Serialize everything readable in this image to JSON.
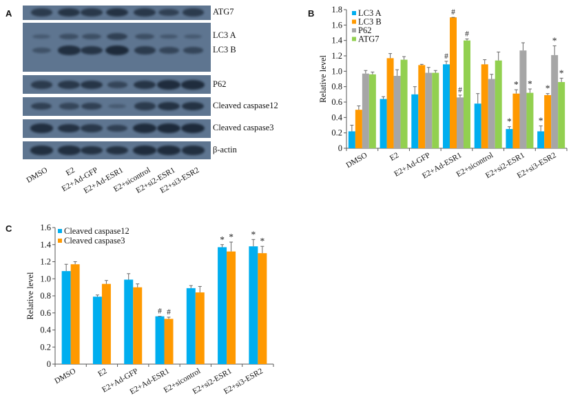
{
  "panels": {
    "A": {
      "letter": "A",
      "lanes": [
        "DMSO",
        "E2",
        "E2+Ad-GFP",
        "E2+Ad-ESR1",
        "E2+sicontrol",
        "E2+si2-ESR1",
        "E2+si3-ESR2"
      ],
      "blots": [
        {
          "label": "ATG7",
          "intensity": [
            0.7,
            0.8,
            0.75,
            0.85,
            0.75,
            0.6,
            0.7
          ]
        },
        {
          "label": "LC3 A",
          "intensity": [
            0.15,
            0.35,
            0.35,
            0.6,
            0.35,
            0.2,
            0.15
          ]
        },
        {
          "label": "LC3 B",
          "intensity": [
            0.3,
            0.9,
            0.8,
            1.0,
            0.7,
            0.5,
            0.5
          ]
        },
        {
          "label": "P62",
          "intensity": [
            0.7,
            0.75,
            0.8,
            0.5,
            0.8,
            0.95,
            0.95
          ]
        },
        {
          "label": "Cleaved caspase12",
          "intensity": [
            0.6,
            0.5,
            0.6,
            0.15,
            0.7,
            0.85,
            0.85
          ]
        },
        {
          "label": "Cleaved caspase3",
          "intensity": [
            0.9,
            0.85,
            0.75,
            0.6,
            0.95,
            1.0,
            1.0
          ]
        },
        {
          "label": "β-actin",
          "intensity": [
            0.9,
            0.9,
            0.85,
            0.85,
            0.95,
            0.95,
            0.9
          ]
        }
      ]
    },
    "B": {
      "letter": "B"
    },
    "C": {
      "letter": "C"
    }
  },
  "chart_data": [
    {
      "id": "B",
      "type": "bar",
      "title": "",
      "xlabel": "",
      "ylabel": "Relative level",
      "ylim": [
        0,
        1.8
      ],
      "yticks": [
        "0",
        "0.2",
        "0.4",
        "0.6",
        "0.8",
        "1.0",
        "1.2",
        "1.4",
        "1.6",
        "1.8"
      ],
      "grid": false,
      "legend_position": "top-left",
      "categories": [
        "DMSO",
        "E2",
        "E2+Ad-GFP",
        "E2+Ad-ESR1",
        "E2+sicontrol",
        "E2+si2-ESR1",
        "E2+si3-ESR2"
      ],
      "series": [
        {
          "name": "LC3 A",
          "color": "#00aeef",
          "values": [
            0.22,
            0.64,
            0.7,
            1.09,
            0.58,
            0.25,
            0.22
          ],
          "errors": [
            0.08,
            0.03,
            0.1,
            0.04,
            0.13,
            0.03,
            0.07
          ],
          "marks": [
            "",
            "",
            "",
            "#",
            "",
            "*",
            "*"
          ]
        },
        {
          "name": "LC3 B",
          "color": "#ff9900",
          "values": [
            0.5,
            1.17,
            1.08,
            1.7,
            1.09,
            0.71,
            0.69
          ],
          "errors": [
            0.05,
            0.06,
            0.01,
            0.0,
            0.06,
            0.05,
            0.02
          ],
          "marks": [
            "",
            "",
            "",
            "#",
            "",
            "*",
            "*"
          ]
        },
        {
          "name": "P62",
          "color": "#a6a6a6",
          "values": [
            0.97,
            0.94,
            0.98,
            0.66,
            0.9,
            1.27,
            1.21
          ],
          "errors": [
            0.04,
            0.08,
            0.07,
            0.03,
            0.06,
            0.1,
            0.12
          ],
          "marks": [
            "",
            "",
            "",
            "#",
            "",
            "",
            "*"
          ]
        },
        {
          "name": "ATG7",
          "color": "#92d050",
          "values": [
            0.96,
            1.15,
            0.98,
            1.4,
            1.14,
            0.72,
            0.86
          ],
          "errors": [
            0.03,
            0.04,
            0.03,
            0.02,
            0.11,
            0.05,
            0.05
          ],
          "marks": [
            "",
            "",
            "",
            "#",
            "",
            "*",
            "*"
          ]
        }
      ]
    },
    {
      "id": "C",
      "type": "bar",
      "title": "",
      "xlabel": "",
      "ylabel": "Relative level",
      "ylim": [
        0,
        1.6
      ],
      "yticks": [
        "0",
        "0.2",
        "0.4",
        "0.6",
        "0.8",
        "1.0",
        "1.2",
        "1.4",
        "1.6"
      ],
      "grid": false,
      "legend_position": "top-left",
      "categories": [
        "DMSO",
        "E2",
        "E2+Ad-GFP",
        "E2+Ad-ESR1",
        "E2+sicontrol",
        "E2+si2-ESR1",
        "E2+si3-ESR2"
      ],
      "series": [
        {
          "name": "Cleaved caspase12",
          "color": "#00aeef",
          "values": [
            1.09,
            0.79,
            0.99,
            0.56,
            0.89,
            1.37,
            1.38
          ],
          "errors": [
            0.08,
            0.02,
            0.07,
            0.0,
            0.03,
            0.03,
            0.08
          ],
          "marks": [
            "",
            "",
            "",
            "#",
            "",
            "*",
            "*"
          ]
        },
        {
          "name": "Cleaved caspase3",
          "color": "#ff9900",
          "values": [
            1.17,
            0.94,
            0.9,
            0.53,
            0.84,
            1.32,
            1.3
          ],
          "errors": [
            0.03,
            0.04,
            0.04,
            0.02,
            0.07,
            0.11,
            0.08
          ],
          "marks": [
            "",
            "",
            "",
            "#",
            "",
            "*",
            "*"
          ]
        }
      ]
    }
  ]
}
